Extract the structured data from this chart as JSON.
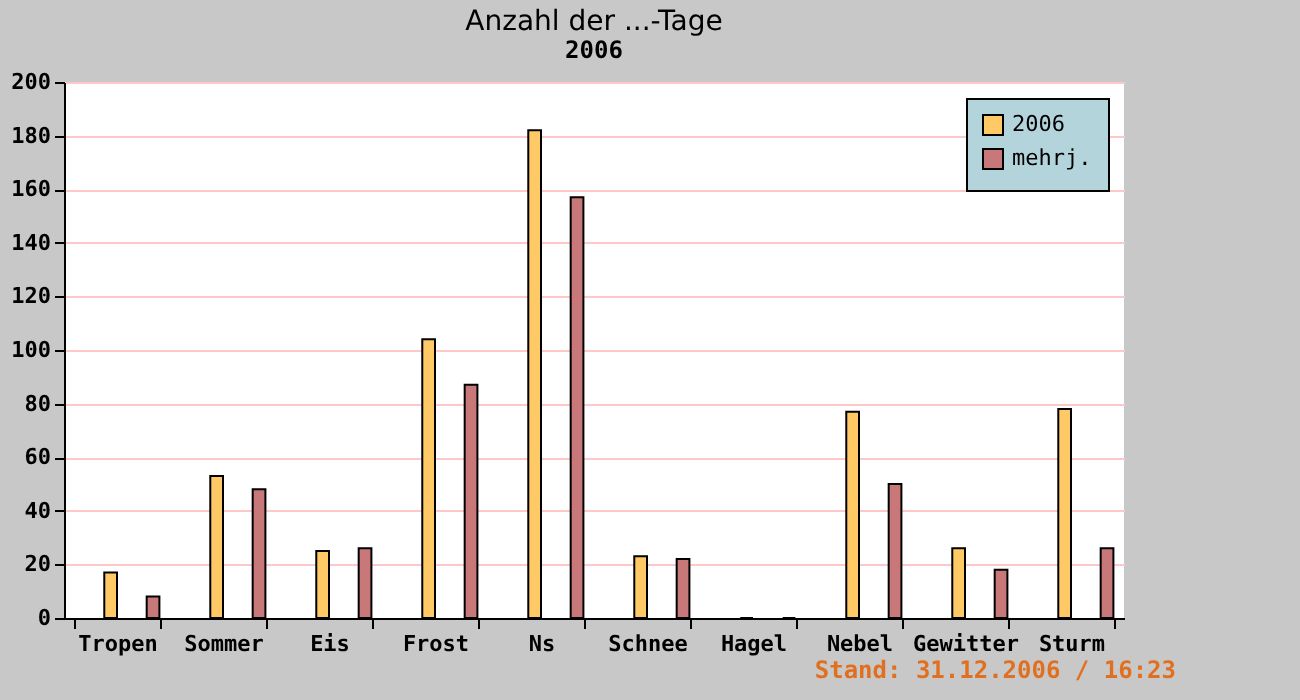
{
  "chart_data": {
    "type": "bar",
    "title": "Anzahl der ...-Tage",
    "subtitle": "2006",
    "categories": [
      "Tropen",
      "Sommer",
      "Eis",
      "Frost",
      "Ns",
      "Schnee",
      "Hagel",
      "Nebel",
      "Gewitter",
      "Sturm"
    ],
    "series": [
      {
        "name": "2006",
        "color": "#ffc966",
        "values": [
          17,
          53,
          25,
          104,
          182,
          23,
          0,
          77,
          26,
          78
        ]
      },
      {
        "name": "mehrj.",
        "color": "#c87878",
        "values": [
          8,
          48,
          26,
          87,
          157,
          22,
          0,
          50,
          18,
          26
        ]
      }
    ],
    "ylim": [
      0,
      200
    ],
    "yticks": [
      0,
      20,
      40,
      60,
      80,
      100,
      120,
      140,
      160,
      180,
      200
    ],
    "grid": "y",
    "legend": "top right",
    "annotations": [
      "Stand: 31.12.2006 / 16:23"
    ]
  }
}
